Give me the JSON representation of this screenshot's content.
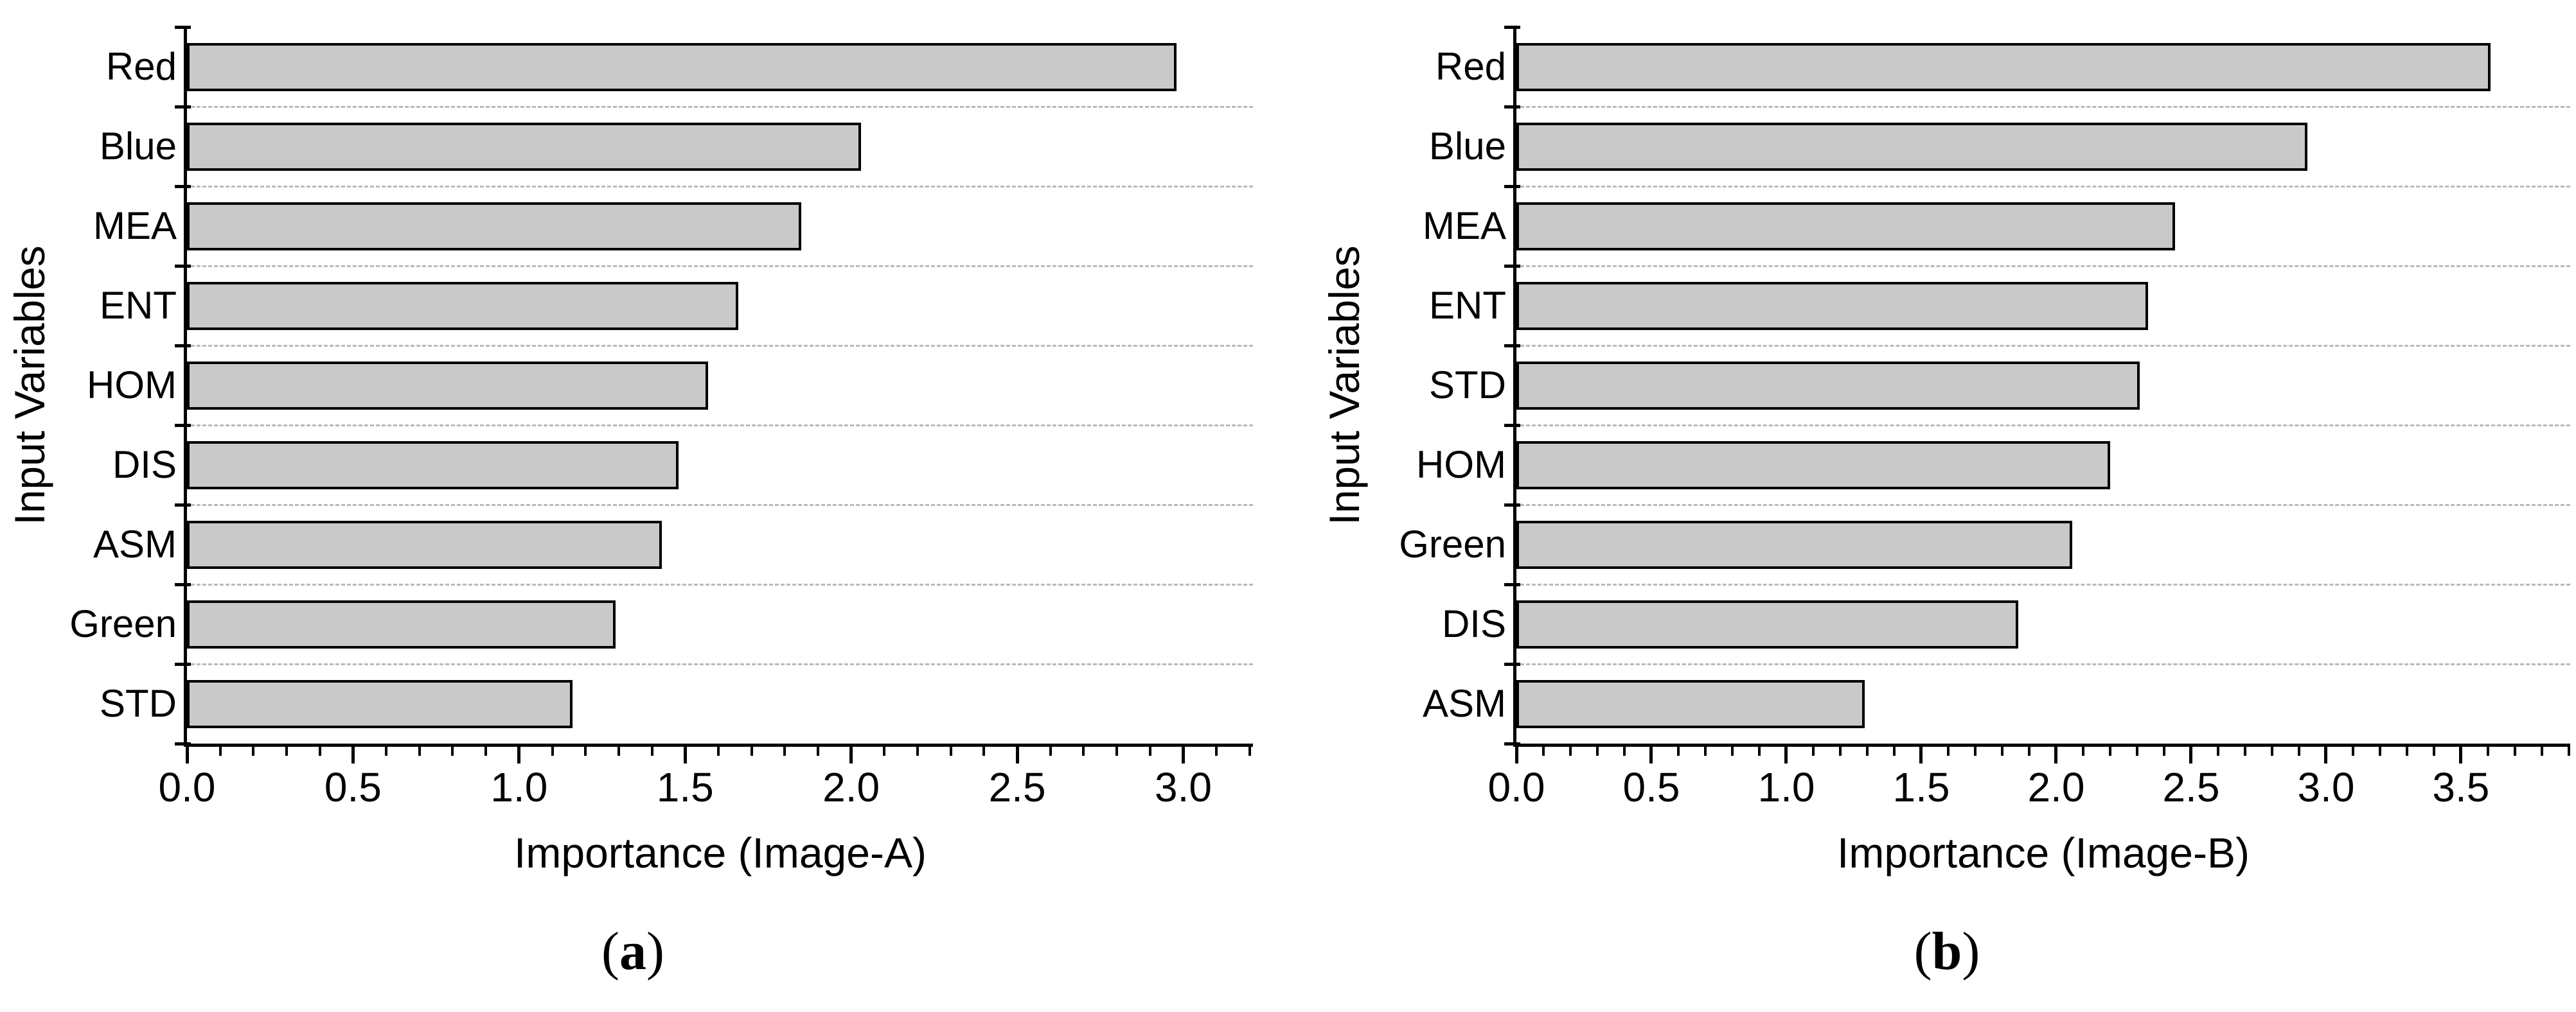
{
  "figure": {
    "background": "#ffffff",
    "text_color": "#000000"
  },
  "chart_data": [
    {
      "type": "bar",
      "orientation": "horizontal",
      "panel": "a",
      "caption_open": "(",
      "caption_letter": "a",
      "caption_close": ")",
      "xlabel": "Importance (Image-A)",
      "ylabel": "Input Variables",
      "categories": [
        "Red",
        "Blue",
        "MEA",
        "ENT",
        "HOM",
        "DIS",
        "ASM",
        "Green",
        "STD"
      ],
      "values": [
        2.98,
        2.03,
        1.85,
        1.66,
        1.57,
        1.48,
        1.43,
        1.29,
        1.16
      ],
      "xlim": [
        0,
        3.21
      ],
      "xticks": [
        0.0,
        0.5,
        1.0,
        1.5,
        2.0,
        2.5,
        3.0
      ],
      "xtick_labels": [
        "0.0",
        "0.5",
        "1.0",
        "1.5",
        "2.0",
        "2.5",
        "3.0"
      ],
      "minor_tick_step": 0.1,
      "grid": "horizontal dashed lines between categories",
      "legend": "none",
      "bar_fill": "#c9c9c9",
      "bar_border": "#000000",
      "grid_color": "#b9b9b9"
    },
    {
      "type": "bar",
      "orientation": "horizontal",
      "panel": "b",
      "caption_open": "(",
      "caption_letter": "b",
      "caption_close": ")",
      "xlabel": "Importance (Image-B)",
      "ylabel": "Input Variables",
      "categories": [
        "Red",
        "Blue",
        "MEA",
        "ENT",
        "STD",
        "HOM",
        "Green",
        "DIS",
        "ASM"
      ],
      "values": [
        3.61,
        2.93,
        2.44,
        2.34,
        2.31,
        2.2,
        2.06,
        1.86,
        1.29
      ],
      "xlim": [
        0,
        3.905
      ],
      "xticks": [
        0.0,
        0.5,
        1.0,
        1.5,
        2.0,
        2.5,
        3.0,
        3.5
      ],
      "xtick_labels": [
        "0.0",
        "0.5",
        "1.0",
        "1.5",
        "2.0",
        "2.5",
        "3.0",
        "3.5"
      ],
      "minor_tick_step": 0.1,
      "grid": "horizontal dashed lines between categories",
      "legend": "none",
      "bar_fill": "#c9c9c9",
      "bar_border": "#000000",
      "grid_color": "#b9b9b9"
    }
  ]
}
